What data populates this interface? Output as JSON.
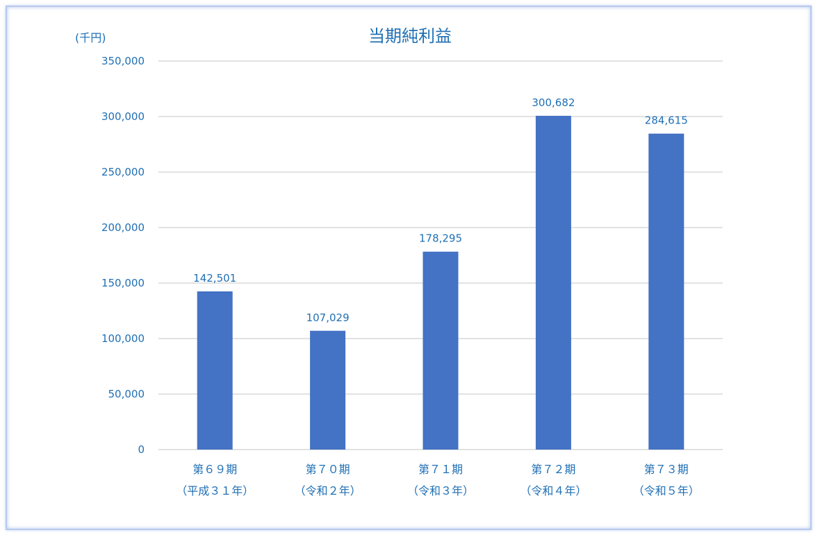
{
  "chart_data": {
    "type": "bar",
    "title": "当期純利益",
    "unit_label": "(千円)",
    "xlabel": "",
    "ylabel": "",
    "ylim": [
      0,
      350000
    ],
    "yticks": [
      0,
      50000,
      100000,
      150000,
      200000,
      250000,
      300000,
      350000
    ],
    "ytick_labels": [
      "0",
      "50,000",
      "100,000",
      "150,000",
      "200,000",
      "250,000",
      "300,000",
      "350,000"
    ],
    "grid": true,
    "legend": "none",
    "bar_color": "#4472c4",
    "categories": [
      {
        "line1": "第６９期",
        "line2": "（平成３１年）"
      },
      {
        "line1": "第７０期",
        "line2": "（令和２年）"
      },
      {
        "line1": "第７１期",
        "line2": "（令和３年）"
      },
      {
        "line1": "第７２期",
        "line2": "（令和４年）"
      },
      {
        "line1": "第７３期",
        "line2": "（令和５年）"
      }
    ],
    "values": [
      142501,
      107029,
      178295,
      300682,
      284615
    ],
    "data_labels": [
      "142,501",
      "107,029",
      "178,295",
      "300,682",
      "284,615"
    ]
  }
}
